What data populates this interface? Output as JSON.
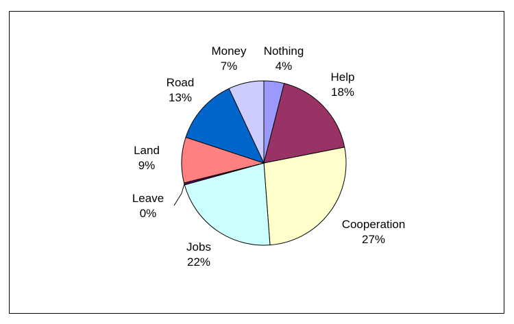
{
  "chart_data": {
    "type": "pie",
    "slices": [
      {
        "label": "Nothing",
        "pct_label": "4%",
        "value": 4,
        "color": "#9999FF"
      },
      {
        "label": "Help",
        "pct_label": "18%",
        "value": 18,
        "color": "#993366"
      },
      {
        "label": "Cooperation",
        "pct_label": "27%",
        "value": 27,
        "color": "#FFFFCC"
      },
      {
        "label": "Jobs",
        "pct_label": "22%",
        "value": 22,
        "color": "#CCFFFF"
      },
      {
        "label": "Leave",
        "pct_label": "0%",
        "value": 0.4,
        "color": "#660066"
      },
      {
        "label": "Land",
        "pct_label": "9%",
        "value": 9,
        "color": "#FF8080"
      },
      {
        "label": "Road",
        "pct_label": "13%",
        "value": 13,
        "color": "#0066CC"
      },
      {
        "label": "Money",
        "pct_label": "7%",
        "value": 7,
        "color": "#CCCCFF"
      }
    ],
    "legend": "none"
  }
}
